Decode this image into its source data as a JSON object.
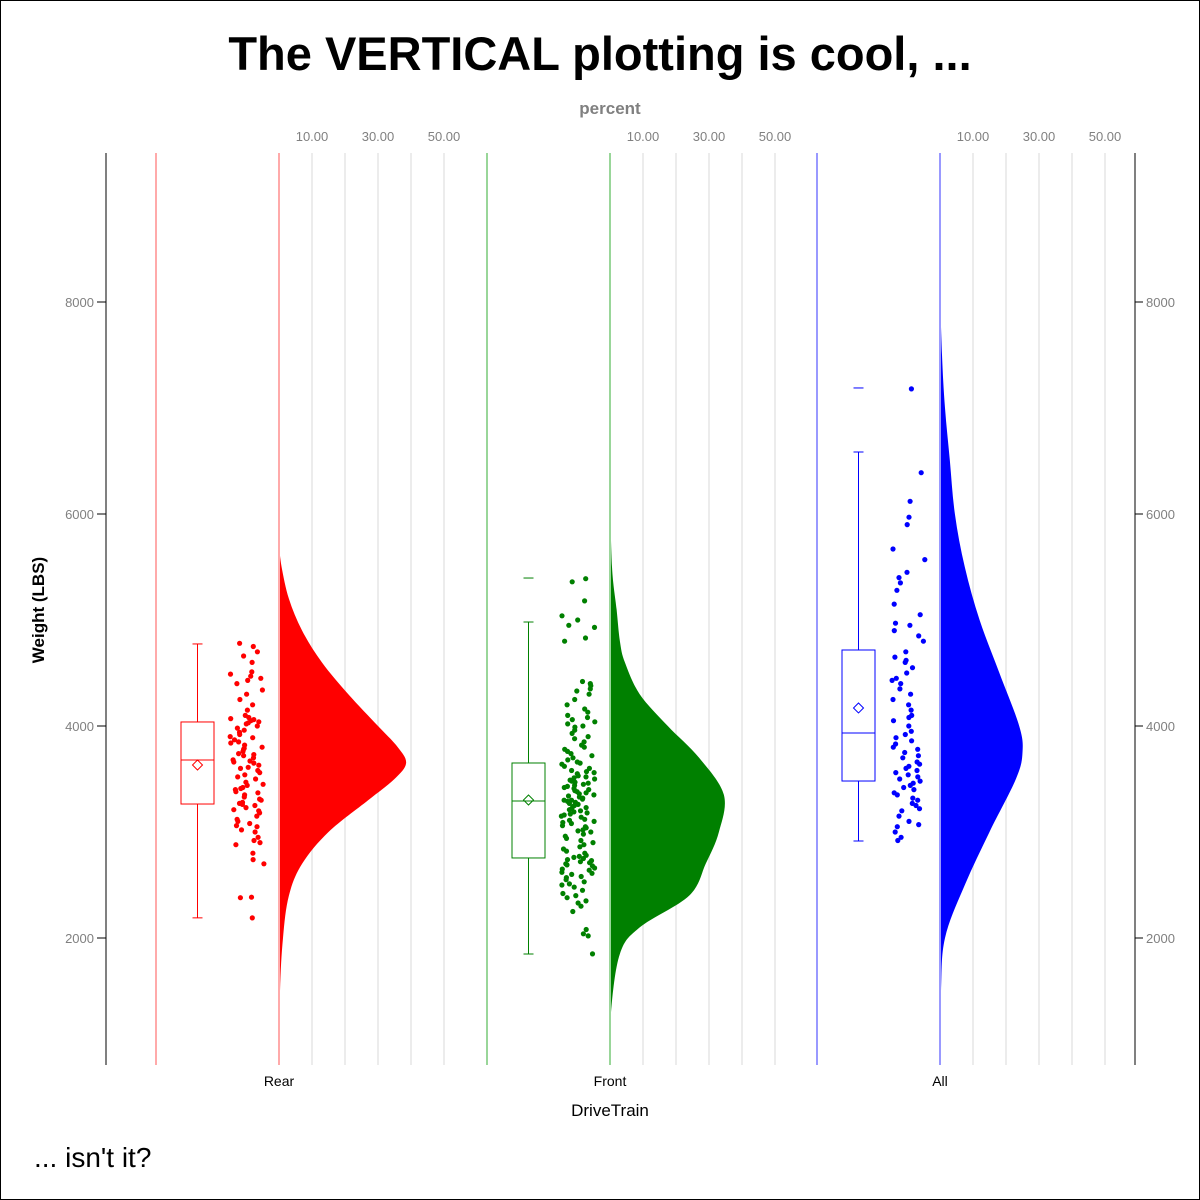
{
  "chart_data": {
    "type": "raincloud",
    "title": "The VERTICAL plotting is cool, ...",
    "footnote": "... isn't it?",
    "xlabel": "DriveTrain",
    "ylabel": "Weight (LBS)",
    "x2label": "percent",
    "x2_ticks": [
      "10.00",
      "30.00",
      "50.00"
    ],
    "x2_gridlines": [
      10,
      20,
      30,
      40,
      50
    ],
    "y_ticks": [
      "2000",
      "4000",
      "6000",
      "8000"
    ],
    "ylim": [
      800,
      9400
    ],
    "y_axis_right": true,
    "groups": [
      {
        "category": "Rear",
        "color": "#ff0000",
        "light_color": "#ffaaaa",
        "box": {
          "min": 2190,
          "q1": 3264,
          "median": 3679,
          "q3": 4038,
          "max": 4774,
          "mean": 3632,
          "outliers": []
        },
        "density": [
          [
            800,
            0
          ],
          [
            1500,
            0.3
          ],
          [
            2000,
            1.2
          ],
          [
            2400,
            3
          ],
          [
            2700,
            7
          ],
          [
            3000,
            15
          ],
          [
            3300,
            27
          ],
          [
            3500,
            35
          ],
          [
            3650,
            38.5
          ],
          [
            3800,
            36
          ],
          [
            4000,
            30
          ],
          [
            4300,
            21
          ],
          [
            4600,
            13
          ],
          [
            4900,
            7
          ],
          [
            5200,
            3
          ],
          [
            5500,
            0.8
          ],
          [
            5700,
            0
          ]
        ],
        "points": [
          2190,
          2380,
          2385,
          2700,
          2740,
          2800,
          2880,
          2900,
          2920,
          2950,
          3000,
          3020,
          3050,
          3060,
          3080,
          3100,
          3120,
          3150,
          3180,
          3200,
          3210,
          3230,
          3250,
          3260,
          3270,
          3280,
          3300,
          3310,
          3330,
          3350,
          3370,
          3380,
          3400,
          3410,
          3420,
          3440,
          3450,
          3470,
          3500,
          3520,
          3540,
          3560,
          3580,
          3600,
          3610,
          3630,
          3650,
          3660,
          3670,
          3680,
          3700,
          3720,
          3730,
          3740,
          3760,
          3780,
          3790,
          3800,
          3820,
          3840,
          3850,
          3870,
          3890,
          3900,
          3920,
          3940,
          3960,
          3980,
          4000,
          4020,
          4030,
          4040,
          4050,
          4060,
          4070,
          4080,
          4100,
          4150,
          4200,
          4250,
          4300,
          4340,
          4400,
          4430,
          4450,
          4470,
          4490,
          4510,
          4600,
          4660,
          4700,
          4750,
          4780
        ]
      },
      {
        "category": "Front",
        "color": "#008000",
        "light_color": "#99d699",
        "box": {
          "min": 1849,
          "q1": 2755,
          "median": 3292,
          "q3": 3651,
          "max": 4981,
          "mean": 3302,
          "outliers": [
            5396
          ]
        },
        "density": [
          [
            800,
            0
          ],
          [
            1300,
            0.3
          ],
          [
            1850,
            3
          ],
          [
            2100,
            9
          ],
          [
            2400,
            24
          ],
          [
            2700,
            29
          ],
          [
            3000,
            33
          ],
          [
            3350,
            34.5
          ],
          [
            3700,
            27
          ],
          [
            4000,
            17.5
          ],
          [
            4300,
            9
          ],
          [
            4600,
            4.5
          ],
          [
            4800,
            3
          ],
          [
            5100,
            2
          ],
          [
            5500,
            0.6
          ],
          [
            6200,
            0
          ]
        ],
        "points": [
          1850,
          2020,
          2040,
          2080,
          2250,
          2300,
          2330,
          2350,
          2380,
          2400,
          2420,
          2450,
          2480,
          2500,
          2510,
          2530,
          2550,
          2570,
          2580,
          2600,
          2610,
          2620,
          2640,
          2650,
          2660,
          2680,
          2690,
          2700,
          2710,
          2720,
          2730,
          2740,
          2750,
          2760,
          2770,
          2780,
          2800,
          2820,
          2840,
          2860,
          2880,
          2900,
          2920,
          2940,
          2960,
          2980,
          3000,
          3010,
          3020,
          3040,
          3050,
          3060,
          3080,
          3090,
          3100,
          3110,
          3120,
          3140,
          3150,
          3160,
          3170,
          3180,
          3190,
          3200,
          3210,
          3220,
          3230,
          3240,
          3250,
          3260,
          3270,
          3280,
          3290,
          3300,
          3300,
          3310,
          3320,
          3330,
          3340,
          3350,
          3360,
          3370,
          3380,
          3390,
          3400,
          3410,
          3420,
          3430,
          3440,
          3450,
          3460,
          3470,
          3480,
          3490,
          3500,
          3510,
          3520,
          3530,
          3550,
          3560,
          3570,
          3580,
          3600,
          3620,
          3640,
          3650,
          3660,
          3680,
          3700,
          3720,
          3740,
          3760,
          3780,
          3800,
          3820,
          3850,
          3880,
          3900,
          3930,
          3960,
          3990,
          4000,
          4020,
          4040,
          4060,
          4080,
          4100,
          4130,
          4160,
          4200,
          4250,
          4300,
          4330,
          4350,
          4380,
          4400,
          4420,
          4800,
          4830,
          4930,
          4950,
          5000,
          5040,
          5180,
          5360,
          5390
        ]
      },
      {
        "category": "All",
        "color": "#0000ff",
        "light_color": "#9999ff",
        "box": {
          "min": 2915,
          "q1": 3481,
          "median": 3934,
          "q3": 4717,
          "max": 6585,
          "mean": 4170,
          "outliers": [
            7189
          ]
        },
        "density": [
          [
            800,
            0
          ],
          [
            1500,
            0.3
          ],
          [
            2000,
            1.5
          ],
          [
            2500,
            7.5
          ],
          [
            3000,
            15
          ],
          [
            3500,
            23
          ],
          [
            3750,
            25
          ],
          [
            4000,
            24
          ],
          [
            4500,
            18
          ],
          [
            5000,
            12
          ],
          [
            5500,
            7.5
          ],
          [
            6000,
            4.5
          ],
          [
            6500,
            3
          ],
          [
            7000,
            1.5
          ],
          [
            7500,
            0.6
          ],
          [
            8100,
            0
          ]
        ],
        "points": [
          2920,
          2950,
          3000,
          3050,
          3070,
          3100,
          3150,
          3200,
          3220,
          3250,
          3270,
          3300,
          3320,
          3350,
          3370,
          3400,
          3420,
          3440,
          3460,
          3480,
          3500,
          3520,
          3540,
          3560,
          3580,
          3600,
          3620,
          3640,
          3660,
          3700,
          3720,
          3750,
          3780,
          3800,
          3830,
          3860,
          3890,
          3920,
          3950,
          4000,
          4050,
          4080,
          4100,
          4150,
          4200,
          4250,
          4300,
          4350,
          4400,
          4430,
          4450,
          4500,
          4550,
          4600,
          4620,
          4650,
          4700,
          4800,
          4850,
          4900,
          4950,
          4970,
          5050,
          5150,
          5280,
          5350,
          5400,
          5450,
          5570,
          5670,
          5900,
          5970,
          6120,
          6390,
          7180
        ]
      }
    ]
  }
}
